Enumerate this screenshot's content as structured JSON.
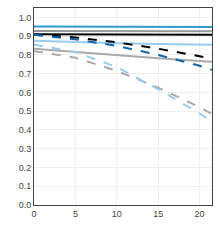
{
  "chart_data": {
    "type": "line",
    "x": [
      0,
      5,
      10,
      15,
      20,
      21.5
    ],
    "series": [
      {
        "color": "#3399cc",
        "line_style": "solid",
        "values": [
          0.952,
          0.951,
          0.95,
          0.95,
          0.949,
          0.949
        ]
      },
      {
        "color": "#999999",
        "line_style": "solid",
        "values": [
          0.928,
          0.927,
          0.927,
          0.926,
          0.926,
          0.926
        ]
      },
      {
        "color": "#000000",
        "line_style": "solid",
        "values": [
          0.91,
          0.909,
          0.908,
          0.907,
          0.907,
          0.907
        ]
      },
      {
        "color": "#99ccee",
        "line_style": "solid",
        "values": [
          0.875,
          0.868,
          0.862,
          0.858,
          0.855,
          0.854
        ]
      },
      {
        "color": "#aaaaaa",
        "line_style": "solid",
        "values": [
          0.833,
          0.815,
          0.798,
          0.782,
          0.768,
          0.763
        ]
      },
      {
        "color": "#000000",
        "line_style": "dashed",
        "values": [
          0.908,
          0.893,
          0.867,
          0.833,
          0.793,
          0.778
        ]
      },
      {
        "color": "#1166aa",
        "line_style": "dashed",
        "values": [
          0.908,
          0.883,
          0.848,
          0.8,
          0.742,
          0.72
        ]
      },
      {
        "color": "#aaaaaa",
        "line_style": "dashed",
        "values": [
          0.82,
          0.785,
          0.715,
          0.625,
          0.522,
          0.485
        ]
      },
      {
        "color": "#99ccee",
        "line_style": "dashed",
        "values": [
          0.855,
          0.815,
          0.735,
          0.618,
          0.488,
          0.445
        ]
      }
    ],
    "xlim": [
      0,
      21.5
    ],
    "ylim": [
      0,
      1.05
    ],
    "xticks": [
      0,
      5,
      10,
      15,
      20
    ],
    "yticks": [
      {
        "value": 0,
        "label": "0.0"
      },
      0.1,
      0.2,
      0.3,
      0.4,
      0.5,
      0.6,
      0.7,
      0.8,
      0.9,
      {
        "value": 1,
        "label": "1.0"
      }
    ],
    "grid": true
  }
}
